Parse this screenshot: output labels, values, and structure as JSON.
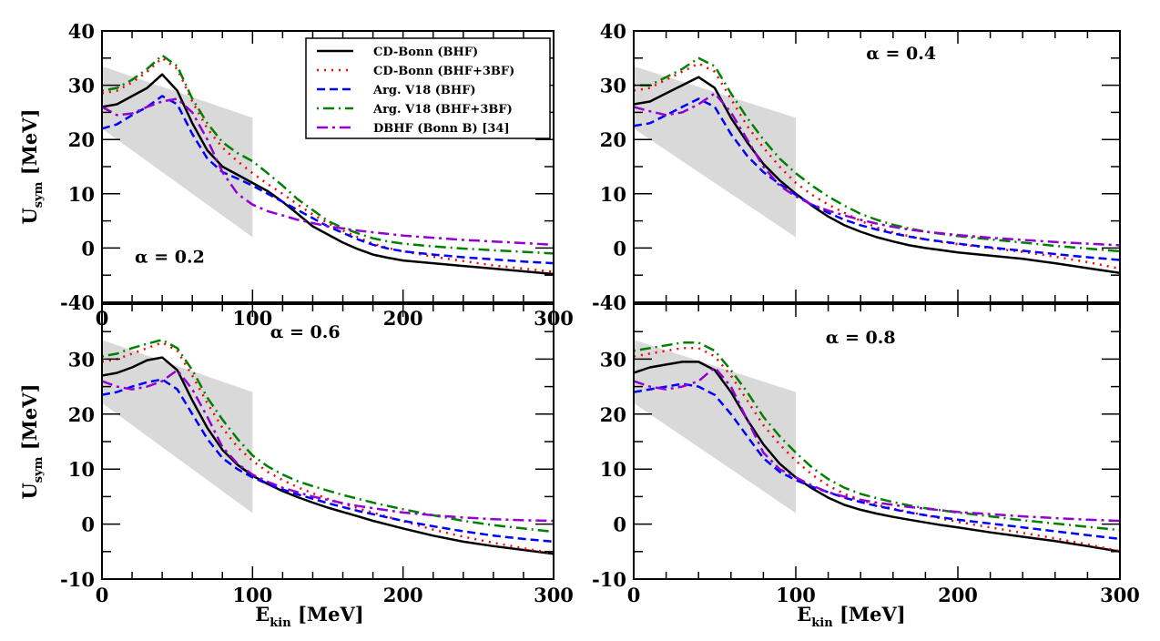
{
  "chart_data": [
    {
      "type": "line",
      "panel": "top-left",
      "annotation": "α = 0.2",
      "xlabel": "E_kin [MeV]",
      "ylabel": "U_sym [MeV]",
      "xlim": [
        0,
        300
      ],
      "ylim": [
        -10,
        40
      ],
      "x_ticks": [
        0,
        100,
        200,
        300
      ],
      "y_tick_labels": [
        "40",
        "30",
        "20",
        "10",
        "0",
        "-40"
      ],
      "grid": false,
      "legend": "top-right",
      "band": {
        "x": [
          0,
          100
        ],
        "upper": [
          33.5,
          24
        ],
        "lower": [
          22,
          2
        ],
        "color": "#d9d9d9"
      },
      "x": [
        0,
        10,
        20,
        30,
        40,
        50,
        60,
        70,
        80,
        90,
        100,
        110,
        120,
        130,
        140,
        150,
        160,
        170,
        180,
        190,
        200,
        220,
        240,
        260,
        280,
        300
      ],
      "series": [
        {
          "name": "CD-Bonn (BHF)",
          "values": [
            26,
            26.5,
            28,
            29.5,
            32,
            29,
            23,
            18,
            15,
            13.5,
            12,
            10.5,
            8.5,
            6.3,
            4,
            2.5,
            1,
            -0.2,
            -1.2,
            -1.8,
            -2.3,
            -2.8,
            -3.3,
            -3.8,
            -4.3,
            -4.8
          ]
        },
        {
          "name": "CD-Bonn (BHF+3BF)",
          "values": [
            28.5,
            29,
            30.5,
            32.5,
            35,
            33,
            27,
            22,
            18.5,
            16,
            13.8,
            11.8,
            10,
            8,
            6.2,
            4.6,
            3.2,
            2,
            0.8,
            0,
            -0.6,
            -1.6,
            -2.4,
            -3.2,
            -3.8,
            -4.4
          ]
        },
        {
          "name": "Arg. V18 (BHF)",
          "values": [
            22,
            22.8,
            24.5,
            26,
            28,
            26.5,
            21,
            16.5,
            14,
            12.8,
            11.5,
            10,
            8.5,
            7,
            5.5,
            4,
            2.8,
            1.6,
            0.6,
            -0.1,
            -0.6,
            -1.2,
            -1.7,
            -2.1,
            -2.5,
            -2.8
          ]
        },
        {
          "name": "Arg. V18 (BHF+3BF)",
          "values": [
            29,
            29.5,
            31,
            33,
            35.5,
            33.5,
            27.5,
            23,
            19.5,
            17.5,
            16,
            13.8,
            11.5,
            9,
            7,
            5,
            3.7,
            2.7,
            1.8,
            1.2,
            0.8,
            0.3,
            -0.1,
            -0.4,
            -0.7,
            -1
          ]
        },
        {
          "name": "DBHF (Bonn B) [34]",
          "values": [
            26,
            24.5,
            24.8,
            26,
            27,
            27.5,
            25,
            20,
            14,
            10,
            8,
            6.8,
            6,
            5.2,
            4.6,
            4,
            3.6,
            3.2,
            2.9,
            2.6,
            2.3,
            1.9,
            1.5,
            1.2,
            0.9,
            0.6
          ]
        }
      ]
    },
    {
      "type": "line",
      "panel": "top-right",
      "annotation": "α = 0.4",
      "xlabel": "",
      "ylabel": "",
      "xlim": [
        0,
        300
      ],
      "ylim": [
        -10,
        40
      ],
      "x_ticks": [],
      "y_tick_labels": [
        "40",
        "30",
        "20",
        "10",
        "0",
        "-40"
      ],
      "grid": false,
      "band": {
        "x": [
          0,
          100
        ],
        "upper": [
          33.5,
          24
        ],
        "lower": [
          22,
          2
        ],
        "color": "#d9d9d9"
      },
      "x": [
        0,
        10,
        20,
        30,
        40,
        50,
        60,
        70,
        80,
        90,
        100,
        110,
        120,
        130,
        140,
        150,
        160,
        170,
        180,
        190,
        200,
        220,
        240,
        260,
        280,
        300
      ],
      "series": [
        {
          "name": "CD-Bonn (BHF)",
          "values": [
            26.5,
            27,
            28.5,
            30,
            31.5,
            29.5,
            24,
            19.5,
            15.5,
            12.5,
            10,
            7.8,
            5.8,
            4.2,
            3,
            2,
            1.2,
            0.5,
            0,
            -0.4,
            -0.8,
            -1.4,
            -2,
            -2.8,
            -3.7,
            -4.6
          ]
        },
        {
          "name": "CD-Bonn (BHF+3BF)",
          "values": [
            29,
            29.5,
            31,
            32.5,
            34,
            32.5,
            27.5,
            22.5,
            18.5,
            15,
            12,
            9.8,
            8,
            6.5,
            5,
            3.8,
            2.9,
            2.2,
            1.6,
            1.1,
            0.7,
            0,
            -0.7,
            -1.6,
            -2.6,
            -3.8
          ]
        },
        {
          "name": "Arg. V18 (BHF)",
          "values": [
            22.5,
            23,
            24.5,
            26,
            27.5,
            26,
            21,
            17,
            14,
            11.8,
            9.8,
            8,
            6.5,
            5.2,
            4.2,
            3.4,
            2.7,
            2.1,
            1.6,
            1.2,
            0.8,
            0.1,
            -0.5,
            -1.1,
            -1.7,
            -2.2
          ]
        },
        {
          "name": "Arg. V18 (BHF+3BF)",
          "values": [
            30,
            30,
            31.5,
            33,
            35,
            33.5,
            28.5,
            24,
            20,
            16.5,
            13.8,
            11.5,
            9.5,
            7.8,
            6.3,
            5.2,
            4.3,
            3.6,
            3,
            2.6,
            2.2,
            1.6,
            1,
            0.4,
            -0.1,
            -0.6
          ]
        },
        {
          "name": "DBHF (Bonn B) [34]",
          "values": [
            26,
            25.2,
            24.5,
            25,
            26.5,
            28.5,
            25,
            20,
            15,
            11.5,
            9.5,
            8,
            6.9,
            6,
            5.2,
            4.5,
            3.9,
            3.4,
            3,
            2.7,
            2.4,
            1.9,
            1.5,
            1.1,
            0.8,
            0.5
          ]
        }
      ]
    },
    {
      "type": "line",
      "panel": "bottom-left",
      "annotation": "α = 0.6",
      "xlabel": "E_kin [MeV]",
      "ylabel": "U_sym [MeV]",
      "xlim": [
        0,
        300
      ],
      "ylim": [
        -10,
        40
      ],
      "x_ticks": [
        0,
        100,
        200,
        300
      ],
      "y_tick_labels": [
        "30",
        "20",
        "10",
        "0",
        "-10"
      ],
      "grid": false,
      "band": {
        "x": [
          0,
          100
        ],
        "upper": [
          33.5,
          24
        ],
        "lower": [
          22,
          2
        ],
        "color": "#d9d9d9"
      },
      "x": [
        0,
        10,
        20,
        30,
        40,
        50,
        60,
        70,
        80,
        90,
        100,
        110,
        120,
        130,
        140,
        150,
        160,
        170,
        180,
        190,
        200,
        220,
        240,
        260,
        280,
        300
      ],
      "series": [
        {
          "name": "CD-Bonn (BHF)",
          "values": [
            27,
            27.5,
            28.5,
            29.8,
            30.3,
            28,
            22.5,
            17.5,
            13.5,
            10.8,
            8.8,
            7.3,
            6,
            4.9,
            3.9,
            3,
            2.2,
            1.4,
            0.6,
            -0.1,
            -0.8,
            -2.1,
            -3.2,
            -4,
            -4.7,
            -5.4
          ]
        },
        {
          "name": "CD-Bonn (BHF+3BF)",
          "values": [
            29.5,
            30,
            31,
            32,
            33,
            31.5,
            27,
            22,
            17.5,
            14,
            11.5,
            9.5,
            8,
            6.7,
            5.6,
            4.6,
            3.7,
            2.9,
            2.1,
            1.3,
            0.5,
            -1,
            -2.3,
            -3.4,
            -4.4,
            -5.3
          ]
        },
        {
          "name": "Arg. V18 (BHF)",
          "values": [
            23.5,
            24,
            25,
            25.8,
            26.3,
            24.5,
            20,
            15.5,
            12,
            10,
            8.5,
            7.3,
            6.3,
            5.4,
            4.6,
            3.8,
            3.1,
            2.4,
            1.8,
            1.2,
            0.6,
            -0.4,
            -1.3,
            -2.1,
            -2.7,
            -3.2
          ]
        },
        {
          "name": "Arg. V18 (BHF+3BF)",
          "values": [
            30.5,
            31,
            32,
            32.8,
            33.5,
            32,
            28,
            23,
            19,
            15.5,
            12.5,
            10.5,
            9,
            7.8,
            6.9,
            6.1,
            5.3,
            4.6,
            3.9,
            3.3,
            2.7,
            1.6,
            0.6,
            -0.2,
            -0.8,
            -1.4
          ]
        },
        {
          "name": "DBHF (Bonn B) [34]",
          "values": [
            26,
            25,
            24.5,
            25,
            26,
            28,
            24.5,
            19.5,
            14,
            11,
            9,
            7.7,
            6.6,
            5.8,
            5,
            4.4,
            3.8,
            3.3,
            2.9,
            2.5,
            2.1,
            1.6,
            1.2,
            0.9,
            0.7,
            0.6
          ]
        }
      ]
    },
    {
      "type": "line",
      "panel": "bottom-right",
      "annotation": "α = 0.8",
      "xlabel": "E_kin [MeV]",
      "ylabel": "",
      "xlim": [
        0,
        300
      ],
      "ylim": [
        -10,
        40
      ],
      "x_ticks": [
        0,
        100,
        200,
        300
      ],
      "y_tick_labels": [
        "30",
        "20",
        "10",
        "0",
        "-10"
      ],
      "grid": false,
      "band": {
        "x": [
          0,
          100
        ],
        "upper": [
          33.5,
          24
        ],
        "lower": [
          22,
          2
        ],
        "color": "#d9d9d9"
      },
      "x": [
        0,
        10,
        20,
        30,
        40,
        50,
        60,
        70,
        80,
        90,
        100,
        110,
        120,
        130,
        140,
        150,
        160,
        170,
        180,
        190,
        200,
        220,
        240,
        260,
        280,
        300
      ],
      "series": [
        {
          "name": "CD-Bonn (BHF)",
          "values": [
            27.5,
            28.5,
            29,
            29.5,
            29.5,
            28,
            24,
            19,
            14.5,
            11,
            8.5,
            6.5,
            4.8,
            3.5,
            2.6,
            1.9,
            1.3,
            0.8,
            0.3,
            -0.2,
            -0.6,
            -1.5,
            -2.3,
            -3.1,
            -4,
            -5
          ]
        },
        {
          "name": "CD-Bonn (BHF+3BF)",
          "values": [
            30.5,
            31,
            31.5,
            32,
            32,
            30.5,
            27,
            22.5,
            18,
            14.5,
            11.5,
            9,
            7,
            5.5,
            4.4,
            3.5,
            2.8,
            2.2,
            1.6,
            1,
            0.4,
            -0.6,
            -1.6,
            -2.6,
            -3.7,
            -4.9
          ]
        },
        {
          "name": "Arg. V18 (BHF)",
          "values": [
            24,
            24.5,
            25,
            25.5,
            25,
            23.5,
            20,
            16,
            12,
            9.5,
            8,
            6.8,
            5.8,
            4.8,
            4,
            3.3,
            2.7,
            2.1,
            1.6,
            1.2,
            0.8,
            0.1,
            -0.6,
            -1.3,
            -2,
            -2.7
          ]
        },
        {
          "name": "Arg. V18 (BHF+3BF)",
          "values": [
            31.5,
            32,
            32.5,
            33,
            33,
            31.5,
            28,
            24,
            19.5,
            16,
            13,
            10.3,
            8.2,
            6.6,
            5.5,
            4.7,
            4,
            3.4,
            2.9,
            2.5,
            2.1,
            1.4,
            0.7,
            0.1,
            -0.5,
            -1.1
          ]
        },
        {
          "name": "DBHF (Bonn B) [34]",
          "values": [
            26,
            25,
            24.5,
            25,
            26,
            28.5,
            25,
            19,
            13,
            10,
            8.5,
            7,
            5.8,
            5,
            4.4,
            3.9,
            3.5,
            3.1,
            2.8,
            2.5,
            2.2,
            1.8,
            1.4,
            1.1,
            0.8,
            0.6
          ]
        }
      ]
    }
  ],
  "legend": {
    "entries": [
      {
        "label": "CD-Bonn (BHF)",
        "color": "#000000",
        "style": "solid"
      },
      {
        "label": "CD-Bonn (BHF+3BF)",
        "color": "#ff0000",
        "style": "dotted"
      },
      {
        "label": "Arg. V18 (BHF)",
        "color": "#0000ff",
        "style": "dashed"
      },
      {
        "label": "Arg. V18 (BHF+3BF)",
        "color": "#008000",
        "style": "dash-dot"
      },
      {
        "label": "DBHF (Bonn B) [34]",
        "color": "#9400d3",
        "style": "dash-dot-long"
      }
    ]
  },
  "axis_titles": {
    "x_main": "E",
    "x_sub": "kin",
    "x_unit": " [MeV]",
    "y_main": "U",
    "y_sub": "sym",
    "y_unit": " [MeV]"
  }
}
